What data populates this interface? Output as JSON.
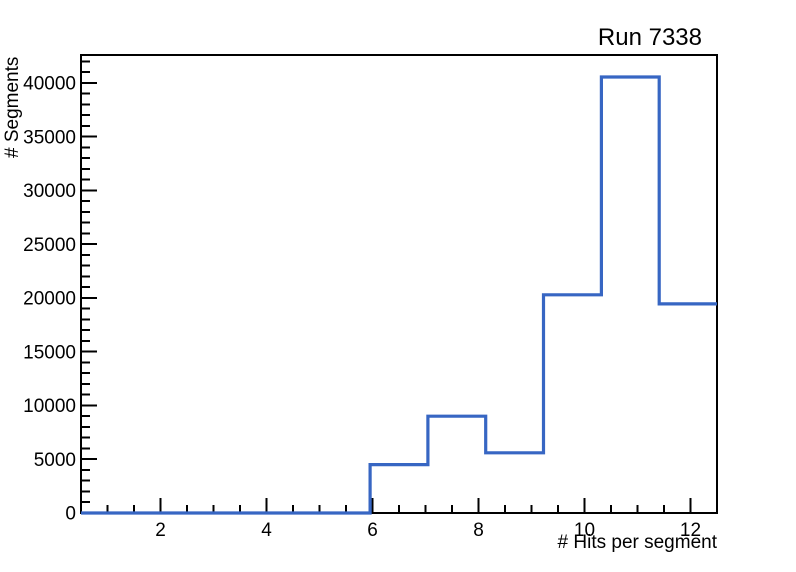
{
  "window": {
    "title": "Run 7338"
  },
  "chart_data": {
    "type": "bar",
    "style": "step-histogram",
    "title": "Run 7338",
    "xlabel": "# Hits per segment",
    "ylabel": "# Segments",
    "xlim": [
      0.5,
      12.5
    ],
    "ylim": [
      0,
      42600
    ],
    "bin_edges": [
      0.5,
      1.5909,
      2.6818,
      3.7727,
      4.8636,
      5.9545,
      7.0455,
      8.1364,
      9.2273,
      10.3182,
      11.4091,
      12.5
    ],
    "counts": [
      0,
      0,
      0,
      0,
      0,
      4500,
      9000,
      5600,
      20300,
      40550,
      19450
    ],
    "x_major_ticks": [
      2,
      4,
      6,
      8,
      10,
      12
    ],
    "x_tick_labels": [
      "2",
      "4",
      "6",
      "8",
      "10",
      "12"
    ],
    "x_minor_step": 0.5,
    "y_major_ticks": [
      0,
      5000,
      10000,
      15000,
      20000,
      25000,
      30000,
      35000,
      40000
    ],
    "y_tick_labels": [
      "0",
      "5000",
      "10000",
      "15000",
      "20000",
      "25000",
      "30000",
      "35000",
      "40000"
    ],
    "y_minor_step": 1000,
    "line_color": "#3766c3",
    "axis_color": "#000000",
    "background": "#ffffff",
    "grid": false,
    "legend": null
  }
}
